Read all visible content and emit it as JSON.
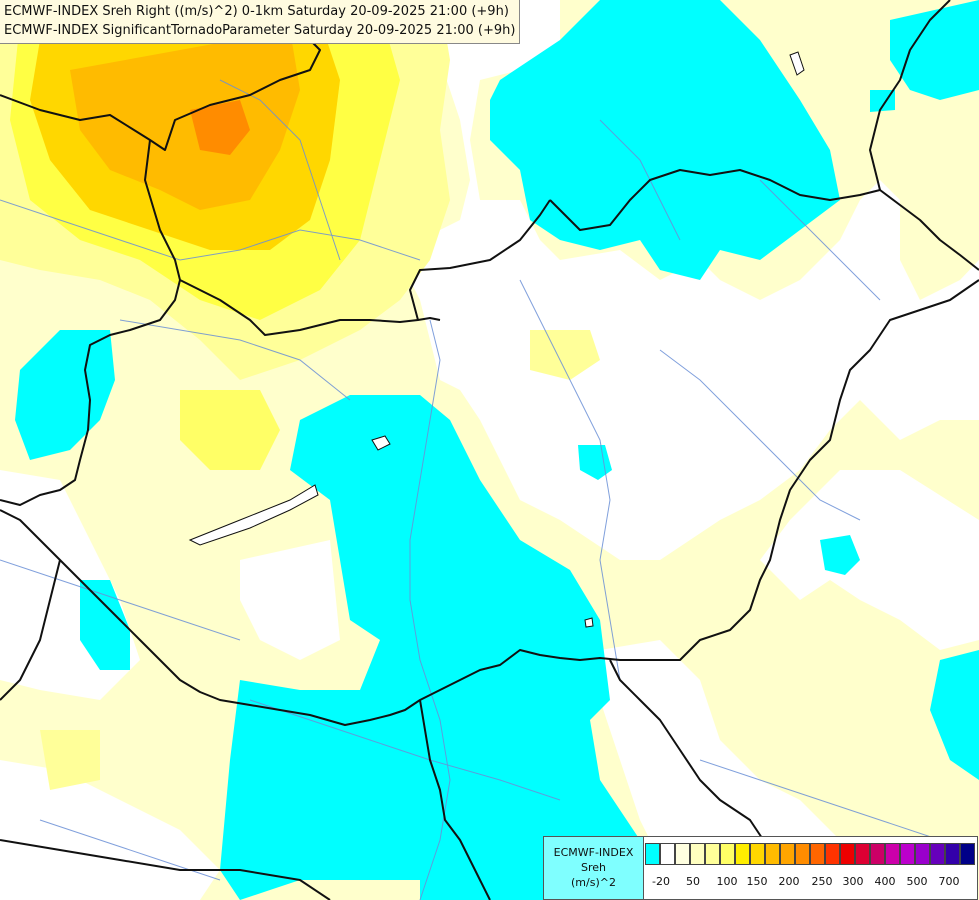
{
  "titles": {
    "line1": "ECMWF-INDEX Sreh Right ((m/s)^2) 0-1km Saturday 20-09-2025 21:00 (+9h)",
    "line2": "ECMWF-INDEX SignificantTornadoParameter Saturday 20-09-2025 21:00 (+9h)"
  },
  "legend": {
    "model": "ECMWF-INDEX",
    "parameter": "Sreh",
    "unit": "(m/s)^2",
    "colors": [
      "#00ffff",
      "#ffffff",
      "#ffffe0",
      "#ffffc0",
      "#ffff99",
      "#ffff66",
      "#ffee00",
      "#ffd700",
      "#ffbb00",
      "#ffa500",
      "#ff8c00",
      "#ff6600",
      "#ff3300",
      "#ee0000",
      "#dd0033",
      "#cc0066",
      "#cc00aa",
      "#bb00cc",
      "#9900cc",
      "#6600bb",
      "#3300aa",
      "#000088"
    ],
    "ticks": [
      "-20",
      "50",
      "100",
      "150",
      "200",
      "250",
      "300",
      "400",
      "500",
      "700"
    ]
  },
  "map_colors": {
    "cyan": "#00ffff",
    "pale_yellow": "#ffffcc",
    "light_yellow": "#ffff99",
    "yellow": "#ffff33",
    "gold": "#ffd700",
    "orange": "#ffaa00",
    "dark_orange": "#ff8800"
  }
}
